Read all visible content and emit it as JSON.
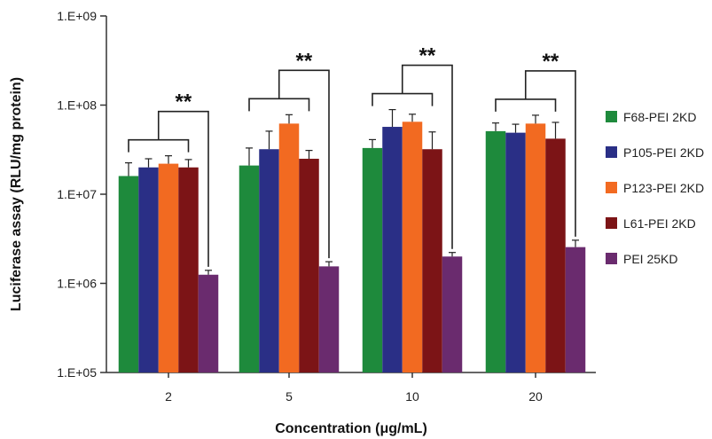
{
  "chart_data": {
    "type": "bar",
    "xlabel": "Concentration (μg/mL)",
    "ylabel": "Luciferase assay (RLU/mg protein)",
    "y_scale": "log",
    "ylim": [
      100000,
      1000000000
    ],
    "y_ticks": [
      "1.E+05",
      "1.E+06",
      "1.E+07",
      "1.E+08",
      "1.E+09"
    ],
    "categories": [
      "2",
      "5",
      "10",
      "20"
    ],
    "significance_label": "**",
    "legend_position": "right",
    "series": [
      {
        "name": "F68-PEI 2KD",
        "color": "#1e8a3c",
        "values": [
          16000000,
          21000000,
          33000000,
          51000000
        ],
        "errors": [
          6500000,
          12000000,
          8000000,
          12000000
        ]
      },
      {
        "name": "P105-PEI 2KD",
        "color": "#2a2f86",
        "values": [
          20000000,
          32000000,
          57000000,
          49000000
        ],
        "errors": [
          5000000,
          19000000,
          32000000,
          12000000
        ]
      },
      {
        "name": "P123-PEI 2KD",
        "color": "#f26a21",
        "values": [
          22000000,
          62000000,
          65000000,
          62000000
        ],
        "errors": [
          5000000,
          16000000,
          14000000,
          15000000
        ]
      },
      {
        "name": "L61-PEI 2KD",
        "color": "#7c1416",
        "values": [
          20000000,
          25000000,
          32000000,
          42000000
        ],
        "errors": [
          4500000,
          6000000,
          18000000,
          22000000
        ]
      },
      {
        "name": "PEI 25KD",
        "color": "#6a2b6e",
        "values": [
          1250000,
          1550000,
          2000000,
          2550000
        ],
        "errors": [
          150000,
          200000,
          220000,
          500000
        ]
      }
    ]
  }
}
